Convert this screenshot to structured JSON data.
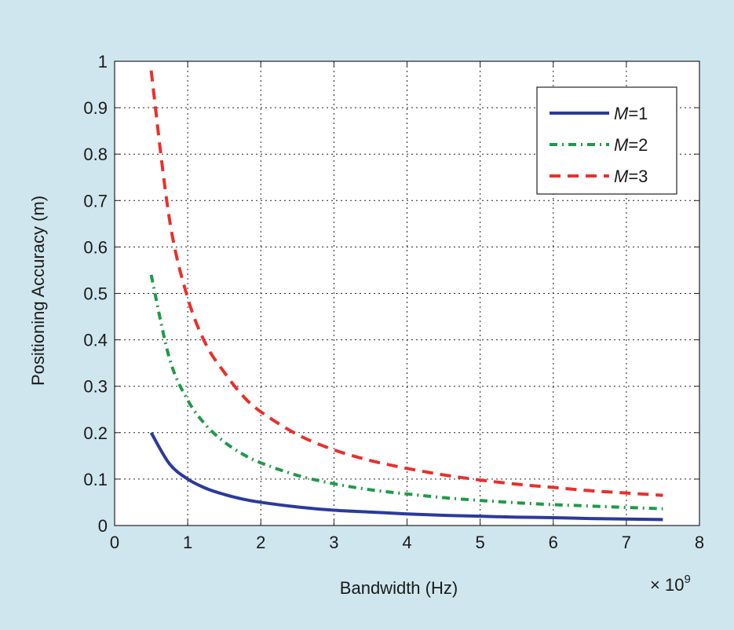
{
  "chart_data": {
    "type": "line",
    "title": "",
    "xlabel": "Bandwidth (Hz)",
    "ylabel": "Positioning Accuracy (m)",
    "x_multiplier_base": "× 10",
    "x_multiplier_exp": "9",
    "xlim": [
      0,
      8
    ],
    "ylim": [
      0,
      1
    ],
    "xticks": [
      "0",
      "1",
      "2",
      "3",
      "4",
      "5",
      "6",
      "7",
      "8"
    ],
    "yticks": [
      "0",
      "0.1",
      "0.2",
      "0.3",
      "0.4",
      "0.5",
      "0.6",
      "0.7",
      "0.8",
      "0.9",
      "1"
    ],
    "grid": true,
    "legend_position": "top-right",
    "x": [
      0.5,
      0.75,
      1,
      1.25,
      1.5,
      1.75,
      2,
      2.5,
      3,
      3.5,
      4,
      4.5,
      5,
      5.5,
      6,
      6.5,
      7,
      7.5
    ],
    "series": [
      {
        "name_italic": "M",
        "name_rest": "=1",
        "color": "#2b3a9e",
        "style": "solid",
        "values": [
          0.2,
          0.133,
          0.1,
          0.08,
          0.067,
          0.057,
          0.05,
          0.04,
          0.033,
          0.029,
          0.025,
          0.022,
          0.02,
          0.018,
          0.017,
          0.015,
          0.014,
          0.013
        ]
      },
      {
        "name_italic": "M",
        "name_rest": "=2",
        "color": "#1f9a4a",
        "style": "dashdot",
        "values": [
          0.54,
          0.36,
          0.27,
          0.216,
          0.18,
          0.154,
          0.135,
          0.108,
          0.09,
          0.077,
          0.068,
          0.06,
          0.054,
          0.049,
          0.045,
          0.042,
          0.039,
          0.036
        ]
      },
      {
        "name_italic": "M",
        "name_rest": "=3",
        "color": "#e8302c",
        "style": "dashed",
        "values": [
          0.98,
          0.66,
          0.49,
          0.39,
          0.33,
          0.28,
          0.245,
          0.196,
          0.163,
          0.14,
          0.123,
          0.109,
          0.098,
          0.089,
          0.082,
          0.075,
          0.07,
          0.065
        ]
      }
    ]
  }
}
